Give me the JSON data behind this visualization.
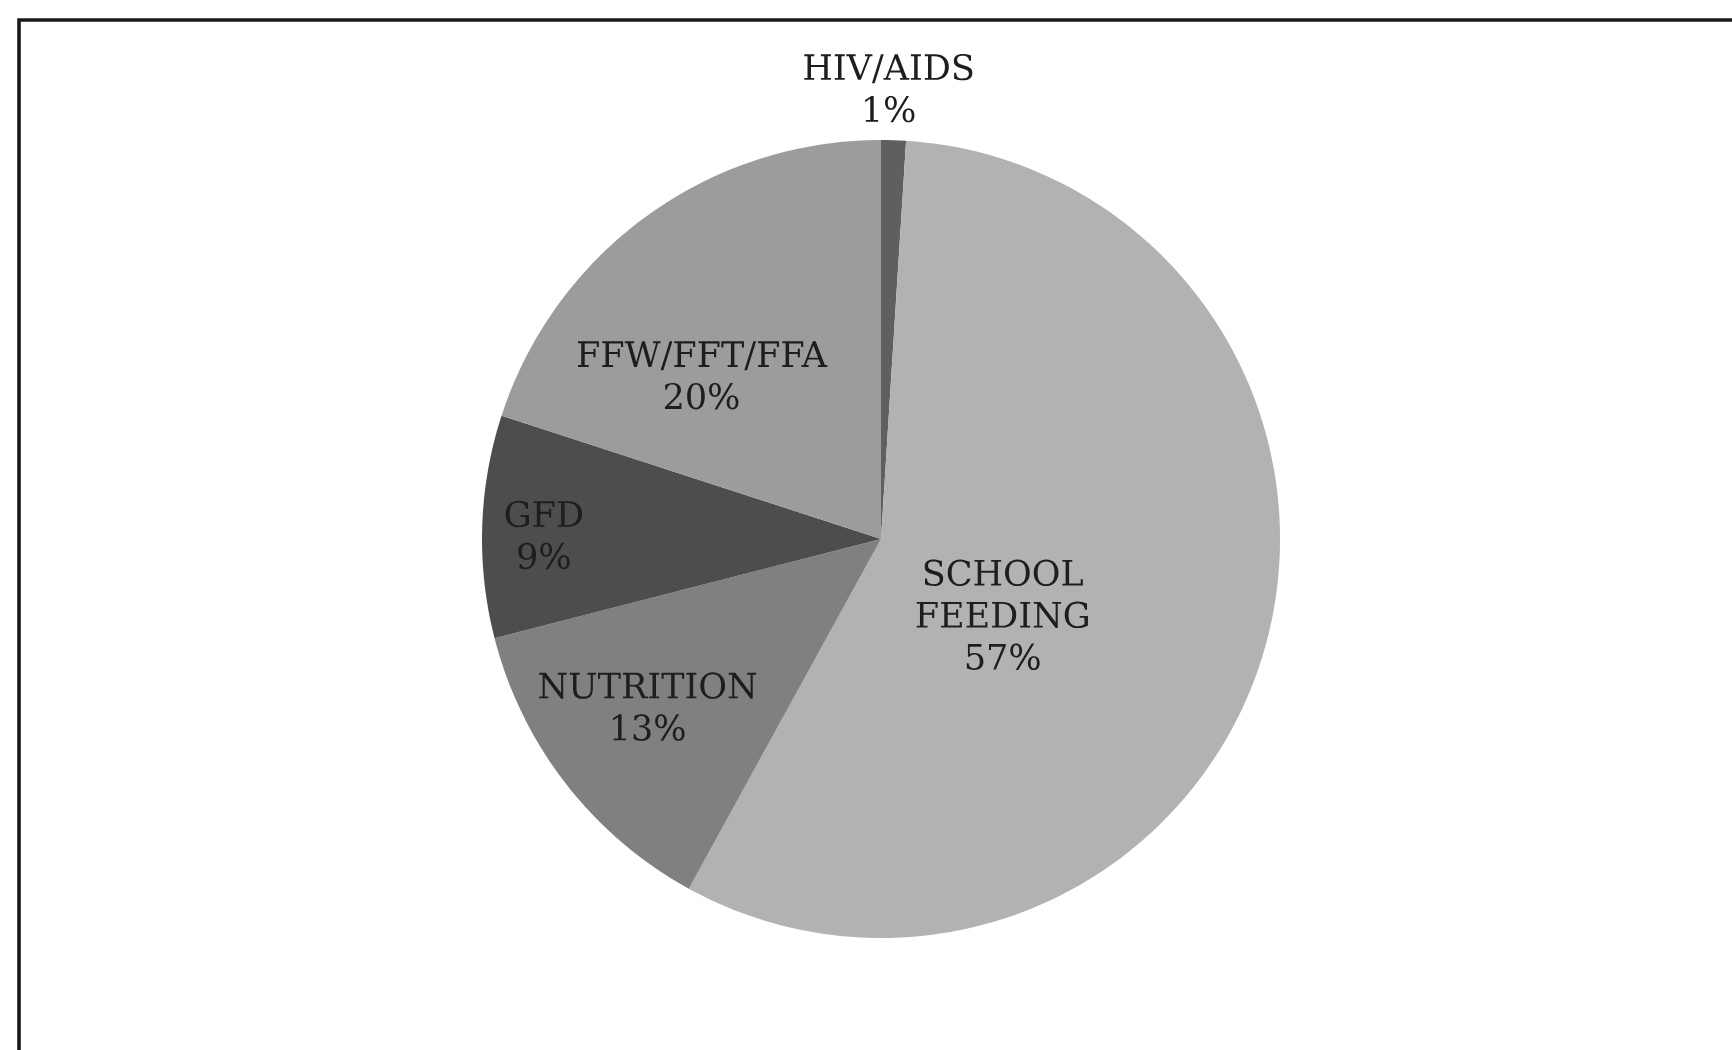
{
  "chart_data": {
    "type": "pie",
    "categories": [
      "HIV/AIDS",
      "SCHOOL FEEDING",
      "NUTRITION",
      "GFD",
      "FFW/FFT/FFA"
    ],
    "values": [
      1,
      57,
      13,
      9,
      20
    ],
    "colors": [
      "#5f5f5f",
      "#b2b2b2",
      "#808080",
      "#4d4d4d",
      "#9c9c9c"
    ],
    "value_labels": [
      "1%",
      "57%",
      "13%",
      "9%",
      "20%"
    ]
  }
}
